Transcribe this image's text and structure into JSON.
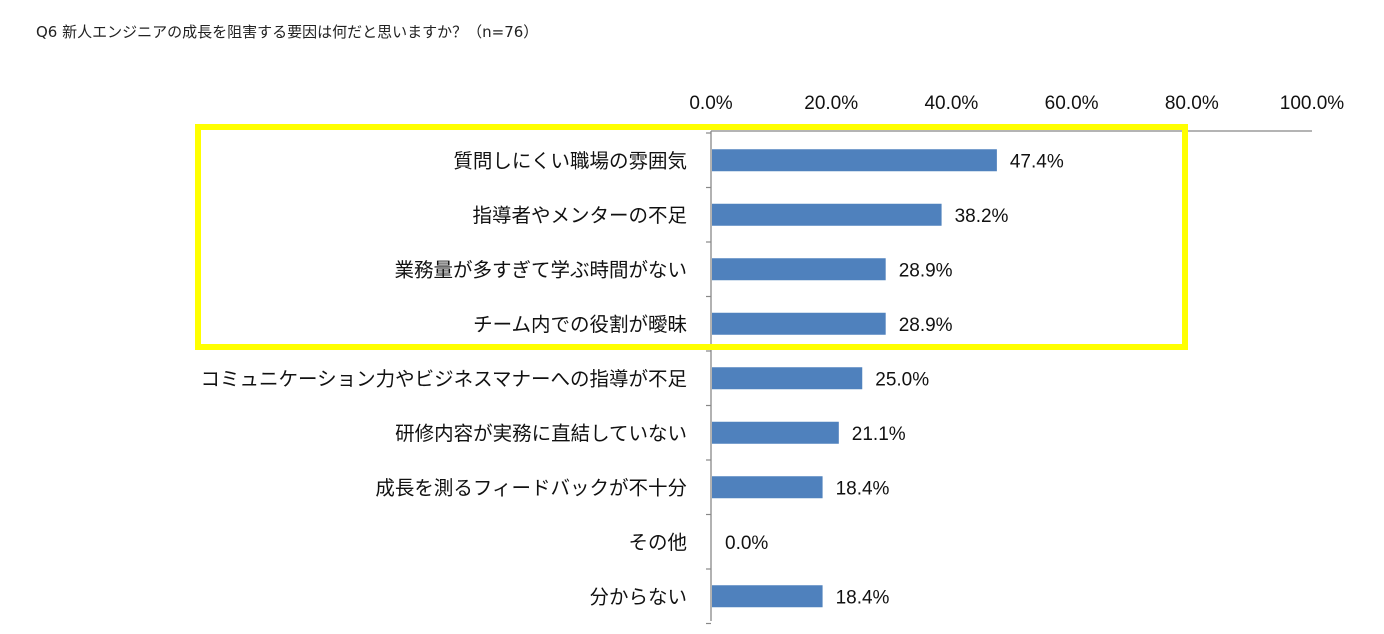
{
  "chart_data": {
    "type": "bar",
    "orientation": "horizontal",
    "title": "Q6 新人エンジニアの成長を阻害する要因は何だと思いますか？（n=76）",
    "categories": [
      "質問しにくい職場の雰囲気",
      "指導者やメンターの不足",
      "業務量が多すぎて学ぶ時間がない",
      "チーム内での役割が曖昧",
      "コミュニケーション力やビジネスマナーへの指導が不足",
      "研修内容が実務に直結していない",
      "成長を測るフィードバックが不十分",
      "その他",
      "分からない"
    ],
    "values": [
      47.4,
      38.2,
      28.9,
      28.9,
      25.0,
      21.1,
      18.4,
      0.0,
      18.4
    ],
    "value_labels": [
      "47.4%",
      "38.2%",
      "28.9%",
      "28.9%",
      "25.0%",
      "21.1%",
      "18.4%",
      "0.0%",
      "18.4%"
    ],
    "xlim": [
      0,
      100
    ],
    "xticks": [
      "0.0%",
      "20.0%",
      "40.0%",
      "60.0%",
      "80.0%",
      "100.0%"
    ],
    "axis_position": "top",
    "grid": false,
    "highlighted_categories": [
      0,
      1,
      2,
      3
    ],
    "colors": {
      "bar": "#4f81bd",
      "highlight_box": "#ffff00",
      "axis": "#888888"
    }
  }
}
